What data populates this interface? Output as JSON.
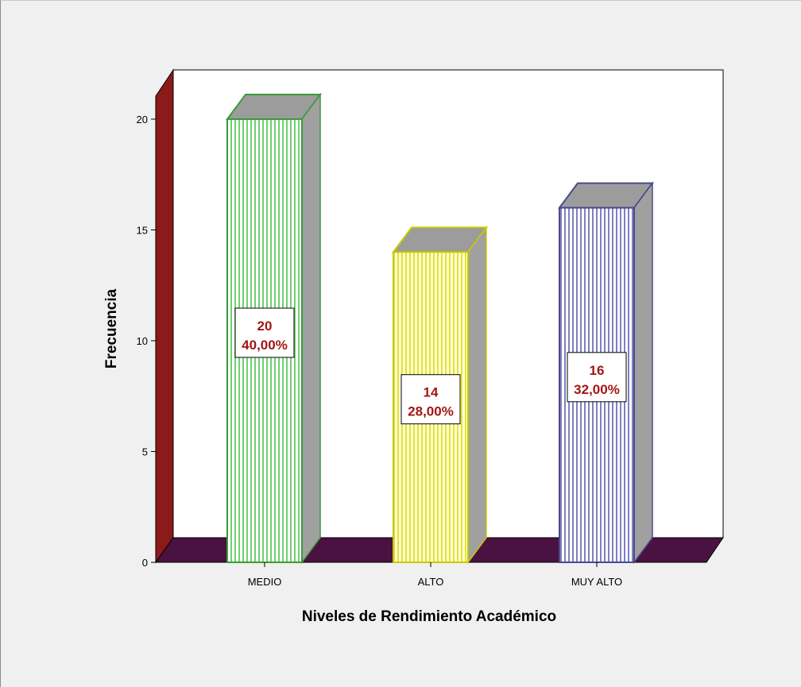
{
  "chart_data": {
    "type": "bar",
    "categories": [
      "MEDIO",
      "ALTO",
      "MUY ALTO"
    ],
    "values": [
      20,
      14,
      16
    ],
    "data_labels": [
      {
        "count": "20",
        "percent": "40,00%"
      },
      {
        "count": "14",
        "percent": "28,00%"
      },
      {
        "count": "16",
        "percent": "32,00%"
      }
    ],
    "title": "",
    "xlabel": "Niveles de Rendimiento Académico",
    "ylabel": "Frecuencia",
    "ylim": [
      0,
      20
    ],
    "yticks": [
      "0",
      "5",
      "10",
      "15",
      "20"
    ],
    "grid": false,
    "style": "3d-bars",
    "colors": {
      "bar_outlines": [
        "#3a9a3a",
        "#c8c800",
        "#4a4a8a"
      ],
      "bar_fills": [
        "#6fd06f",
        "#ffff00",
        "#8080c0"
      ],
      "bar_side": "#a0a0a0",
      "bar_top": "#9c9c9c",
      "left_wall": "#8b1a1a",
      "floor": "#4a1240",
      "data_label_text": "#a31515",
      "background": "#f0f0f0",
      "plot_background": "#ffffff"
    }
  }
}
